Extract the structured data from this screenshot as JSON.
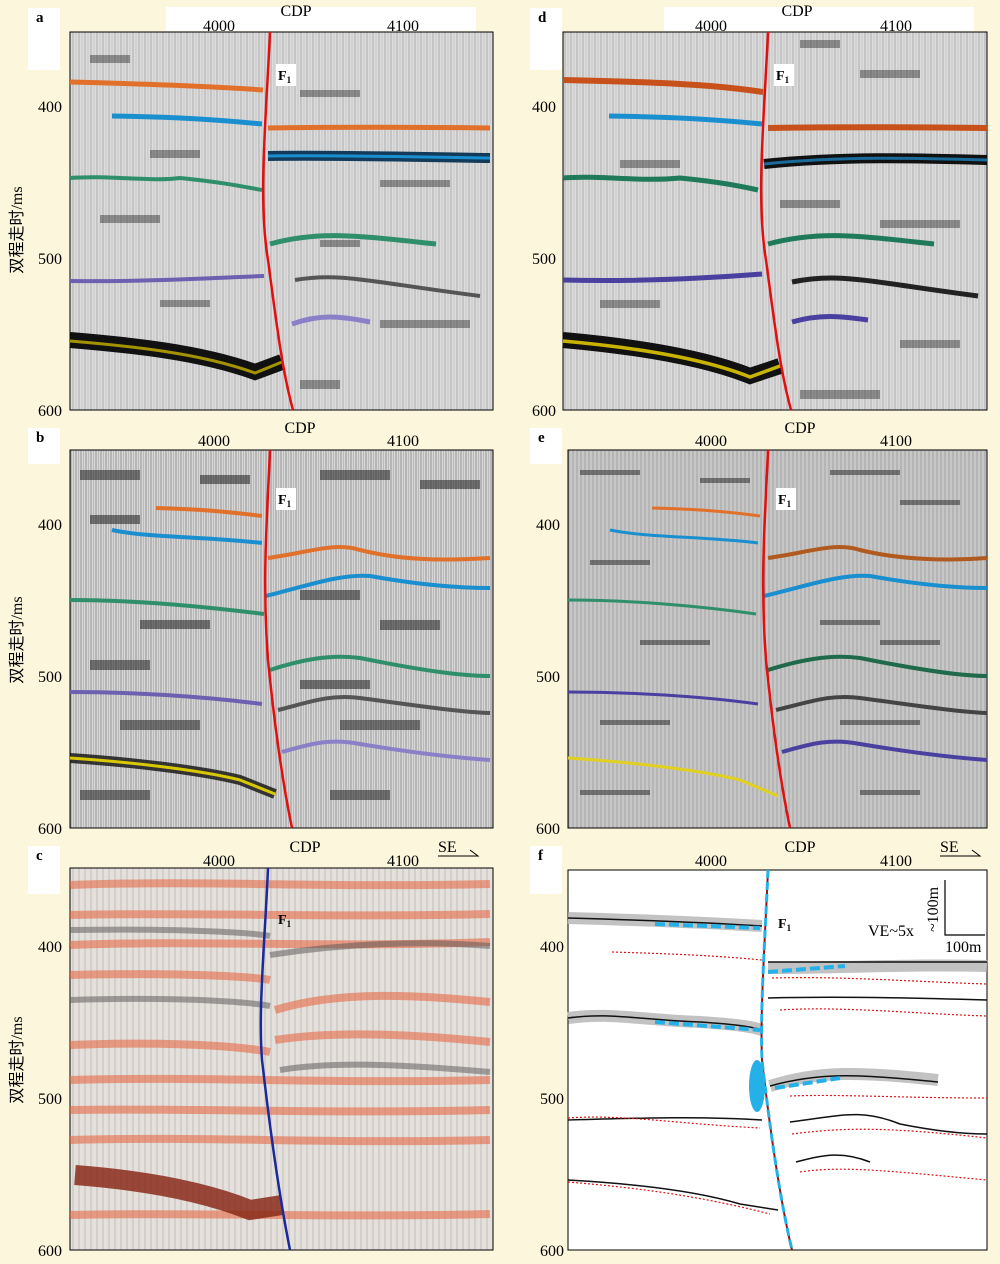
{
  "figure": {
    "x_axis_title": "CDP",
    "x_ticks": [
      "4000",
      "4100"
    ],
    "y_axis_title": "双程走时/ms",
    "y_ticks": [
      "400",
      "500",
      "600"
    ],
    "fault_label_base": "F",
    "fault_label_sub": "1",
    "direction_label": "SE",
    "ve_label": "VE~5x",
    "vscale_label": "~100m",
    "hscale_label": "100m",
    "colors": {
      "orange": "#e0702a",
      "blue": "#1a8fd0",
      "green": "#2f8f6a",
      "purple": "#6c60b0",
      "gray": "#555555",
      "yellow": "#c8b400",
      "fault_red": "#e01010",
      "fault_blue": "#1a2a9a",
      "interp_blue": "#25b0e8"
    },
    "panels": [
      {
        "id": "a",
        "label": "a"
      },
      {
        "id": "b",
        "label": "b"
      },
      {
        "id": "c",
        "label": "c"
      },
      {
        "id": "d",
        "label": "d"
      },
      {
        "id": "e",
        "label": "e"
      },
      {
        "id": "f",
        "label": "f"
      }
    ]
  }
}
